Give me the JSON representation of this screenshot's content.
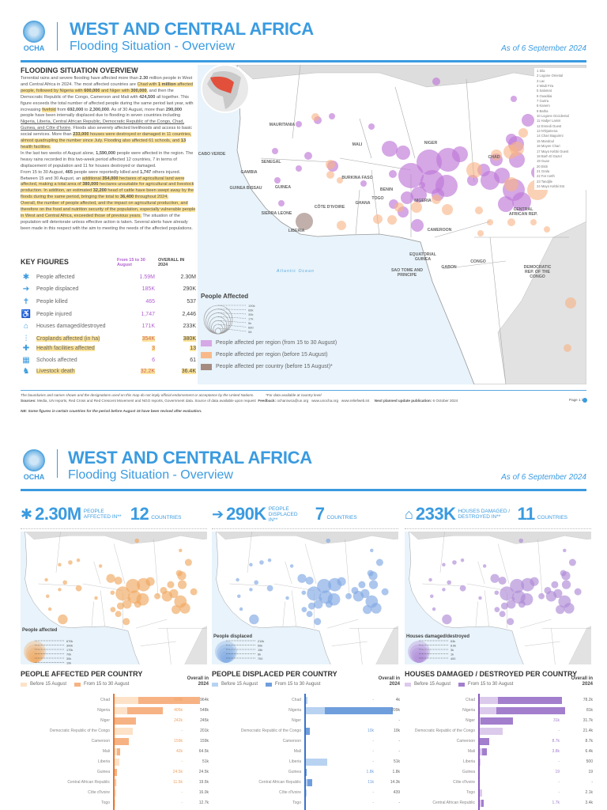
{
  "header": {
    "org": "OCHA",
    "title": "WEST AND CENTRAL AFRICA",
    "subtitle": "Flooding Situation - Overview",
    "date": "As of 6 September 2024"
  },
  "overview": {
    "heading": "FLOODING SITUATION OVERVIEW",
    "paragraphs": [
      [
        {
          "t": "Torrential rains and severe flooding have affected more than "
        },
        {
          "t": "2.30",
          "b": 1
        },
        {
          "t": " million people in West and Central Africa in 2024. The most affected countries are "
        },
        {
          "t": "Chad with ",
          "h": 1
        },
        {
          "t": "1 million",
          "h": 1,
          "b": 1
        },
        {
          "t": " affected people, followed by Nigeria with ",
          "h": 1
        },
        {
          "t": "600,000",
          "h": 1,
          "b": 1
        },
        {
          "t": " and Niger with ",
          "h": 1
        },
        {
          "t": "300,000",
          "h": 1,
          "b": 1
        },
        {
          "t": ", and then the Democratic Republic of the Congo, Cameroon and Mali with "
        },
        {
          "t": "424,500",
          "b": 1
        },
        {
          "t": " all together. This figure exceeds the total number of affected people during the same period last year, with increasing "
        },
        {
          "t": "fivefold",
          "h": 1
        },
        {
          "t": " from "
        },
        {
          "t": "692,000",
          "b": 1
        },
        {
          "t": " to "
        },
        {
          "t": "2,300,000",
          "b": 1
        },
        {
          "t": ". As of 30 August, more than "
        },
        {
          "t": "290,000",
          "b": 1
        },
        {
          "t": " people have been internally displaced due to flooding in seven countries including "
        },
        {
          "t": "Nigeria, Liberia, Central African Republic, Democratic Republic of the Congo, Chad, Guinea, and Côte d'Ivoire",
          "u": 1
        },
        {
          "t": ". Floods also severely affected livelihoods and access to basic social services. More than "
        },
        {
          "t": "233,000",
          "h": 1,
          "b": 1
        },
        {
          "t": " houses were destroyed or damaged in 11 countries, almost quadrupling the number since July. Flooding also affected 61 schools, and ",
          "h": 1
        },
        {
          "t": "13",
          "h": 1,
          "b": 1
        },
        {
          "t": " health facilities.",
          "h": 1
        }
      ],
      [
        {
          "t": "In the last two weeks of August alone, "
        },
        {
          "t": "1,590,000",
          "b": 1
        },
        {
          "t": " people were affected in the region. The heavy rains recorded in this two-week period affected 12 countries, 7 in terms of displacement of population and 11 for houses destroyed or damaged."
        }
      ],
      [
        {
          "t": "From 15 to 30 August, "
        },
        {
          "t": "465",
          "b": 1
        },
        {
          "t": " people were reportedly killed and "
        },
        {
          "t": "1,747",
          "b": 1
        },
        {
          "t": " others injured. Between 15 and 30 August, an "
        },
        {
          "t": "additional ",
          "h": 1
        },
        {
          "t": "354,000",
          "h": 1,
          "b": 1
        },
        {
          "t": " hectares of agricultural land were affected, making a total area of ",
          "h": 1
        },
        {
          "t": "380,000",
          "h": 1,
          "b": 1
        },
        {
          "t": " hectares unsuitable for agricultural and livestock production.",
          "h": 1
        },
        {
          "t": " In addition, an estimated ",
          "h": 1
        },
        {
          "t": "32,200",
          "h": 1,
          "b": 1
        },
        {
          "t": " head of cattle have been swept away by the floods during the same period, bringing the total to ",
          "h": 1
        },
        {
          "t": "36,400",
          "h": 1,
          "b": 1
        },
        {
          "t": " throughout 2024.",
          "h": 1
        }
      ],
      [
        {
          "t": "Overall, the number of people affected, and the impact on agricultural production, and therefore on the food and nutrition security of the population, especially vulnerable people in West and Central Africa, exceeded those of previous years.",
          "h": 1
        },
        {
          "t": " The situation of the population will deteriorate unless effective action is taken. Several alerts have already been made in this respect with the aim to meeting the needs of the affected populations."
        }
      ]
    ]
  },
  "key_figures": {
    "heading": "KEY FIGURES",
    "col1": "From 15 to 30 August",
    "col2": "OVERALL IN 2024",
    "rows": [
      {
        "icon": "people-affected-icon",
        "label": "People affected",
        "period": "1.59M",
        "overall": "2.30M",
        "highlight": false
      },
      {
        "icon": "people-displaced-icon",
        "label": "People displaced",
        "period": "185K",
        "overall": "290K",
        "highlight": false
      },
      {
        "icon": "people-killed-icon",
        "label": "People killed",
        "period": "465",
        "overall": "537",
        "highlight": false
      },
      {
        "icon": "people-injured-icon",
        "label": "People injured",
        "period": "1,747",
        "overall": "2,446",
        "highlight": false
      },
      {
        "icon": "house-icon",
        "label": "Houses damaged/destroyed",
        "period": "171K",
        "overall": "233K",
        "highlight": false
      },
      {
        "icon": "cropland-icon",
        "label": "Croplands affected (in ha)",
        "period": "354K",
        "overall": "380K",
        "highlight": true
      },
      {
        "icon": "health-facility-icon",
        "label": "Health facilities affected",
        "period": "3",
        "overall": "13",
        "highlight": true
      },
      {
        "icon": "school-icon",
        "label": "Schools affected",
        "period": "6",
        "overall": "61",
        "highlight": false
      },
      {
        "icon": "livestock-icon",
        "label": "Livestock death",
        "period": "32.2K",
        "overall": "36.4K",
        "highlight": true
      }
    ]
  },
  "map": {
    "countries": [
      "MAURITANIA",
      "MALI",
      "NIGER",
      "CHAD",
      "CABO VERDE",
      "SENEGAL",
      "GAMBIA",
      "GUINEA BISSAU",
      "GUINEA",
      "BURKINA FASO",
      "BENIN",
      "TOGO",
      "GHANA",
      "CÔTE D'IVOIRE",
      "NIGERIA",
      "SIERRA LEONE",
      "LIBERIA",
      "CAMEROON",
      "CENTRAL AFRICAN REP.",
      "EQUATORIAL GUINEA",
      "SAO TOME AND PRINCIPE",
      "GABON",
      "CONGO",
      "DEMOCRATIC REP. OF THE CONGO"
    ],
    "ocean": "Atlantic Ocean",
    "regions": [
      "1 Sila",
      "2 Logone Oriental",
      "3 Lac",
      "4 Wadi Fira",
      "5 Salamat",
      "6 Ouaddai",
      "7 Guéra",
      "8 Kanem",
      "9 Batha",
      "10 Logone Occidental",
      "11 Hadjer Lamis",
      "12 Ennedi Ouest",
      "13 N'Djamena",
      "14 Chari Baguirmi",
      "15 Mandoul",
      "16 Moyen Chari",
      "17 Mayo Kebbi Ouest",
      "18 Barh El Gazel",
      "19 Guan",
      "20 Ekiti",
      "21 Grala",
      "22 Far north",
      "23 Tandjile",
      "24 Mayo Kebbi Est"
    ],
    "legend_title": "People Affected",
    "size_legend": [
      "190k",
      "68k",
      "35k",
      "17k",
      "5k",
      "680",
      "58"
    ],
    "legend": [
      {
        "label": "People affected per region (from 15 to 30 August)",
        "color": "#d6a8e6"
      },
      {
        "label": "People affected per region (before 15 August)",
        "color": "#f8b98a"
      },
      {
        "label": "People affected per country (before 15 August)*",
        "color": "#a58b80"
      }
    ]
  },
  "footer": {
    "disclaimer": "The boundaries and names shown and the designations used on this map do not imply official endorsement or acceptance by the United Nations.",
    "note": "*For data available at country level",
    "sources_label": "Sources:",
    "sources": "Media, UN reports, Red Cross and Red Crescent Movement and NGO reports, Government data. Source of data available upon request",
    "feedback_label": "Feedback:",
    "feedback": "ocharowca@un.org",
    "site1": "www.unocha.org",
    "site2": "www.reliefweb.int",
    "next_label": "Next planned update publication:",
    "next_date": "6 October 2024",
    "page": "Page 1 /",
    "nb": "NB: Some figures in certain countries for the period before August 15 have been revised after evaluation."
  },
  "page2": {
    "stats": [
      {
        "icon": "people-affected-icon",
        "value": "2.30M",
        "label": "PEOPLE AFFECTED IN**",
        "count": "12",
        "count_label": "COUNTRIES"
      },
      {
        "icon": "people-displaced-icon",
        "value": "290K",
        "label": "PEOPLE DISPLACED IN**",
        "count": "7",
        "count_label": "COUNTRIES"
      },
      {
        "icon": "house-damaged-icon",
        "value": "233K",
        "label": "HOUSES DAMAGED / DESTROYED IN**",
        "count": "11",
        "count_label": "COUNTRIES"
      }
    ],
    "mini_maps": [
      {
        "legend_title": "People affected",
        "sizes": [
          "670k",
          "300k",
          "170k",
          "70k",
          "30k",
          "10k"
        ],
        "color": "#f0a860"
      },
      {
        "legend_title": "People displaced",
        "sizes": [
          "210k",
          "50k",
          "15k",
          "6k",
          "700"
        ],
        "color": "#7fa8e3"
      },
      {
        "legend_title": "Houses damaged/destroyed",
        "sizes": [
          "63k",
          "8.6k",
          "3k",
          "1k",
          "400"
        ],
        "color": "#ae8ad6"
      }
    ]
  },
  "chart_data": [
    {
      "type": "bar",
      "title": "PEOPLE AFFECTED PER COUNTRY",
      "legend": [
        "Before 15 August",
        "From 15 to 30 August"
      ],
      "overall_header": "Overall in 2024",
      "colors": {
        "before": "#fde2c8",
        "from": "#f7b284",
        "axis": "#e8772e",
        "label": "#f0a060"
      },
      "categories": [
        "Chad",
        "Nigeria",
        "Niger",
        "Democratic Republic of the Congo",
        "Cameroon",
        "Mali",
        "Liberia",
        "Guinea",
        "Central African Republic",
        "Côte d'Ivoire",
        "Togo"
      ],
      "before": [
        265,
        143,
        3,
        201,
        0,
        22.5,
        51,
        0,
        8,
        16,
        12.7
      ],
      "from": [
        699,
        405,
        242,
        0,
        159,
        42,
        0,
        24.5,
        11.5,
        0,
        0
      ],
      "from_labels": [
        "699k",
        "405k",
        "242k",
        "-",
        "159k",
        "42k",
        "-",
        "24.5k",
        "11.5k",
        "-",
        "-"
      ],
      "overall_labels": [
        "964k",
        "548k",
        "245k",
        "201k",
        "159k",
        "64.5k",
        "51k",
        "24.5k",
        "19.5k",
        "16.0k",
        "12.7k"
      ]
    },
    {
      "type": "bar",
      "title": "PEOPLE DISPLACED PER COUNTRY",
      "legend": [
        "Before 15 August",
        "From 15 to 30 August"
      ],
      "overall_header": "Overall in 2024",
      "colors": {
        "before": "#b8d2f1",
        "from": "#6f9edd",
        "axis": "#3b73c8",
        "label": "#6f9edd"
      },
      "categories": [
        "Chad",
        "Nigeria",
        "Niger",
        "Democratic Republic of the Congo",
        "Cameroon",
        "Mali",
        "Liberia",
        "Guinea",
        "Central African Republic",
        "Côte d'Ivoire",
        "Togo"
      ],
      "before": [
        4,
        46,
        0,
        0,
        0,
        0,
        51,
        0,
        3.3,
        0.439,
        0
      ],
      "from": [
        0,
        163,
        0,
        10,
        0,
        0,
        0,
        1.8,
        11,
        0,
        0
      ],
      "from_labels": [
        "-",
        "163k",
        "",
        "10k",
        "-",
        "-",
        "-",
        "1.8k",
        "11k",
        "-",
        "-"
      ],
      "overall_labels": [
        "4k",
        "209k",
        "-",
        "10k",
        "-",
        "-",
        "51k",
        "1.8k",
        "14.3k",
        "439",
        "-"
      ]
    },
    {
      "type": "bar",
      "title": "HOUSES DAMAGED / DESTROYED PER COUNTRY",
      "legend": [
        "Before 15 August",
        "From 15 to 30 August"
      ],
      "overall_header": "Overall in 2024",
      "colors": {
        "before": "#dccaec",
        "from": "#a27ecd",
        "axis": "#8a5cc0",
        "label": "#a27ecd"
      },
      "categories": [
        "Chad",
        "Nigeria",
        "Niger",
        "Democratic Republic of the Congo",
        "Cameroon",
        "Mali",
        "Liberia",
        "Guinea",
        "Côte d'Ivoire",
        "Togo",
        "Central African Republic"
      ],
      "before": [
        17.2,
        16,
        0.7,
        21.4,
        0,
        2.6,
        0.5,
        0,
        0,
        2.1,
        1.7
      ],
      "from": [
        61,
        65,
        31,
        0,
        8.7,
        3.8,
        0,
        0.019,
        0,
        0,
        1.7
      ],
      "from_labels": [
        "61k",
        "65k",
        "31k",
        "-",
        "8.7k",
        "3.8k",
        "-",
        "19",
        "-",
        "-",
        "1.7k"
      ],
      "overall_labels": [
        "78.2k",
        "81k",
        "31.7k",
        "21.4k",
        "8.7k",
        "6.4k",
        "500",
        "19",
        "-",
        "2.1k",
        "3.4k"
      ]
    }
  ]
}
